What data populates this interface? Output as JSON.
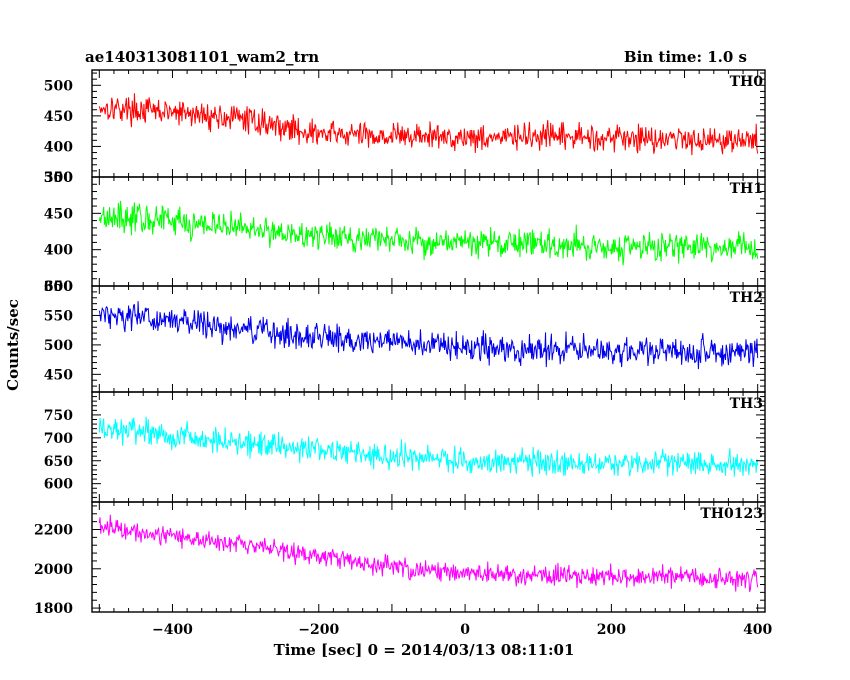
{
  "header": {
    "left": "ae140313081101_wam2_trn",
    "right": "Bin time: 1.0 s"
  },
  "chart_data": {
    "type": "line",
    "title": "ae140313081101_wam2_trn",
    "subtitle": "Bin time: 1.0 s",
    "xlabel": "Time [sec] 0 = 2014/03/13 08:11:01",
    "ylabel": "Counts/sec",
    "xlim": [
      -510,
      410
    ],
    "x_ticks": [
      -400,
      -200,
      0,
      200,
      400
    ],
    "x_tick_labels": [
      "−400",
      "−200",
      "0",
      "200",
      "400"
    ],
    "x_range_data": [
      -500,
      400
    ],
    "bin_time_s": 1.0,
    "grid": false,
    "legend": "none",
    "panels": [
      {
        "name": "TH0",
        "color": "#ff0000",
        "ylim": [
          350,
          525
        ],
        "y_ticks": [
          400,
          450,
          500
        ],
        "y_tick_labels": [
          "400",
          "450",
          "500"
        ],
        "y_floor_label": "350",
        "trend": [
          [
            -500,
            465
          ],
          [
            -300,
            445
          ],
          [
            -200,
            420
          ],
          [
            0,
            415
          ],
          [
            200,
            415
          ],
          [
            400,
            410
          ]
        ],
        "noise_amplitude": 32
      },
      {
        "name": "TH1",
        "color": "#00ff00",
        "ylim": [
          350,
          500
        ],
        "y_ticks": [
          400,
          450
        ],
        "y_tick_labels": [
          "400",
          "450"
        ],
        "y_floor_label": "350",
        "y_top_label": "500",
        "trend": [
          [
            -500,
            448
          ],
          [
            -300,
            430
          ],
          [
            -200,
            418
          ],
          [
            0,
            410
          ],
          [
            200,
            405
          ],
          [
            400,
            402
          ]
        ],
        "noise_amplitude": 30
      },
      {
        "name": "TH2",
        "color": "#0000ee",
        "ylim": [
          420,
          600
        ],
        "y_ticks": [
          450,
          500,
          550
        ],
        "y_tick_labels": [
          "450",
          "500",
          "550"
        ],
        "y_top_label": "600",
        "trend": [
          [
            -500,
            555
          ],
          [
            -300,
            525
          ],
          [
            -100,
            505
          ],
          [
            0,
            495
          ],
          [
            200,
            490
          ],
          [
            400,
            488
          ]
        ],
        "noise_amplitude": 35
      },
      {
        "name": "TH3",
        "color": "#00ffff",
        "ylim": [
          560,
          800
        ],
        "y_ticks": [
          600,
          650,
          700,
          750
        ],
        "y_tick_labels": [
          "600",
          "650",
          "700",
          "750"
        ],
        "trend": [
          [
            -500,
            720
          ],
          [
            -300,
            690
          ],
          [
            -100,
            660
          ],
          [
            0,
            650
          ],
          [
            200,
            645
          ],
          [
            400,
            645
          ]
        ],
        "noise_amplitude": 42
      },
      {
        "name": "TH0123",
        "color": "#ff00ff",
        "ylim": [
          1780,
          2340
        ],
        "y_ticks": [
          1800,
          2000,
          2200
        ],
        "y_tick_labels": [
          "1800",
          "2000",
          "2200"
        ],
        "trend": [
          [
            -500,
            2220
          ],
          [
            -300,
            2120
          ],
          [
            -100,
            2010
          ],
          [
            0,
            1975
          ],
          [
            200,
            1960
          ],
          [
            400,
            1950
          ]
        ],
        "noise_amplitude": 75
      }
    ]
  }
}
